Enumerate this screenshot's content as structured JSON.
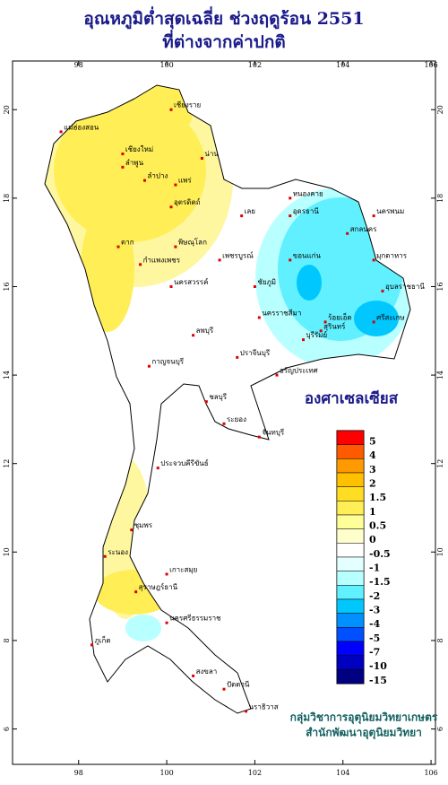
{
  "header": {
    "title_lines": [
      "อุณหภูมิต่ำสุดเฉลี่ย ช่วงฤดูร้อน 2551",
      "ที่ต่างจากค่าปกติ"
    ]
  },
  "map": {
    "xlim": [
      96.5,
      106.1
    ],
    "ylim": [
      5.2,
      21.1
    ],
    "xticks": [
      98,
      100,
      102,
      104,
      106
    ],
    "yticks": [
      20,
      18,
      16,
      14,
      12,
      10,
      8,
      6
    ],
    "places": [
      {
        "name": "เชียงราย",
        "lon": 100.1,
        "lat": 20.0
      },
      {
        "name": "แม่ฮ่องสอน",
        "lon": 97.6,
        "lat": 19.5
      },
      {
        "name": "น่าน",
        "lon": 100.8,
        "lat": 18.9
      },
      {
        "name": "เชียงใหม่",
        "lon": 99.0,
        "lat": 19.0
      },
      {
        "name": "ลำพูน",
        "lon": 99.0,
        "lat": 18.7
      },
      {
        "name": "ลำปาง",
        "lon": 99.5,
        "lat": 18.4
      },
      {
        "name": "แพร่",
        "lon": 100.2,
        "lat": 18.3
      },
      {
        "name": "อุตรดิตถ์",
        "lon": 100.1,
        "lat": 17.8
      },
      {
        "name": "เลย",
        "lon": 101.7,
        "lat": 17.6
      },
      {
        "name": "หนองคาย",
        "lon": 102.8,
        "lat": 18.0
      },
      {
        "name": "อุดรธานี",
        "lon": 102.8,
        "lat": 17.6
      },
      {
        "name": "สกลนคร",
        "lon": 104.1,
        "lat": 17.2
      },
      {
        "name": "นครพนม",
        "lon": 104.7,
        "lat": 17.6
      },
      {
        "name": "มุกดาหาร",
        "lon": 104.7,
        "lat": 16.6
      },
      {
        "name": "ขอนแก่น",
        "lon": 102.8,
        "lat": 16.6
      },
      {
        "name": "ตาก",
        "lon": 98.9,
        "lat": 16.9
      },
      {
        "name": "พิษณุโลก",
        "lon": 100.2,
        "lat": 16.9
      },
      {
        "name": "กำแพงเพชร",
        "lon": 99.4,
        "lat": 16.5
      },
      {
        "name": "เพชรบูรณ์",
        "lon": 101.2,
        "lat": 16.6
      },
      {
        "name": "ชัยภูมิ",
        "lon": 102.0,
        "lat": 16.0
      },
      {
        "name": "นครสวรรค์",
        "lon": 100.1,
        "lat": 16.0
      },
      {
        "name": "ร้อยเอ็ด",
        "lon": 103.6,
        "lat": 15.2
      },
      {
        "name": "อุบลราชธานี",
        "lon": 104.9,
        "lat": 15.9
      },
      {
        "name": "ศรีสะเกษ",
        "lon": 104.7,
        "lat": 15.2
      },
      {
        "name": "สุรินทร์",
        "lon": 103.5,
        "lat": 15.0
      },
      {
        "name": "บุรีรัมย์",
        "lon": 103.1,
        "lat": 14.8
      },
      {
        "name": "นครราชสีมา",
        "lon": 102.1,
        "lat": 15.3
      },
      {
        "name": "ลพบุรี",
        "lon": 100.6,
        "lat": 14.9
      },
      {
        "name": "กาญจนบุรี",
        "lon": 99.6,
        "lat": 14.2
      },
      {
        "name": "ปราจีนบุรี",
        "lon": 101.6,
        "lat": 14.4
      },
      {
        "name": "อรัญประเทศ",
        "lon": 102.5,
        "lat": 14.0
      },
      {
        "name": "ชลบุรี",
        "lon": 100.9,
        "lat": 13.4
      },
      {
        "name": "ระยอง",
        "lon": 101.3,
        "lat": 12.9
      },
      {
        "name": "จันทบุรี",
        "lon": 102.1,
        "lat": 12.6
      },
      {
        "name": "ประจวบคีรีขันธ์",
        "lon": 99.8,
        "lat": 11.9
      },
      {
        "name": "ชุมพร",
        "lon": 99.2,
        "lat": 10.5
      },
      {
        "name": "ระนอง",
        "lon": 98.6,
        "lat": 9.9
      },
      {
        "name": "เกาะสมุย",
        "lon": 100.0,
        "lat": 9.5
      },
      {
        "name": "สุราษฎร์ธานี",
        "lon": 99.3,
        "lat": 9.1
      },
      {
        "name": "นครศรีธรรมราช",
        "lon": 100.0,
        "lat": 8.4
      },
      {
        "name": "ภูเก็ต",
        "lon": 98.3,
        "lat": 7.9
      },
      {
        "name": "สงขลา",
        "lon": 100.6,
        "lat": 7.2
      },
      {
        "name": "ปัตตานี",
        "lon": 101.3,
        "lat": 6.9
      },
      {
        "name": "นราธิวาส",
        "lon": 101.8,
        "lat": 6.4
      }
    ]
  },
  "legend": {
    "title": "องศาเซลเซียส",
    "labels": [
      "5",
      "4",
      "3",
      "2",
      "1.5",
      "1",
      "0.5",
      "0",
      "-0.5",
      "-1",
      "-1.5",
      "-2",
      "-3",
      "-4",
      "-5",
      "-7",
      "-10",
      "-15"
    ],
    "colors": [
      "#ff0000",
      "#ff5a00",
      "#ff9a00",
      "#ffc000",
      "#ffdd22",
      "#ffee55",
      "#ffff99",
      "#ffffcc",
      "#ffffff",
      "#e4ffff",
      "#b8ffff",
      "#60f0ff",
      "#00c8ff",
      "#0090ff",
      "#0050ff",
      "#0000ff",
      "#0000c0",
      "#000080"
    ]
  },
  "credits": [
    "กลุ่มวิชาการอุตุนิยมวิทยาเกษตร",
    "สำนักพัฒนาอุตุนิยมวิทยา"
  ]
}
